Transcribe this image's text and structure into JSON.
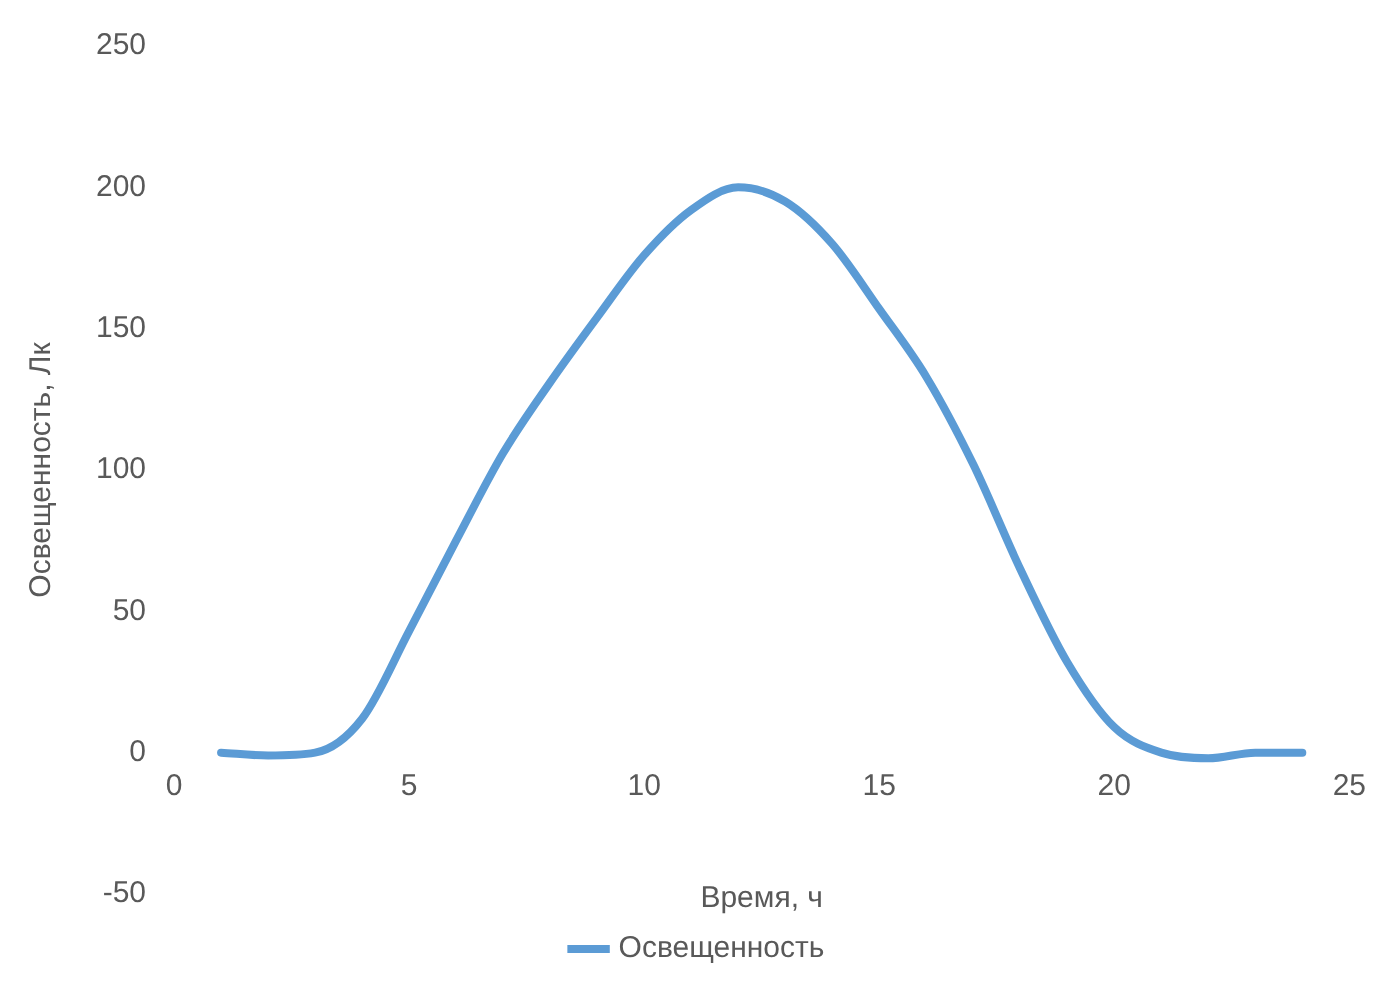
{
  "chart_data": {
    "type": "line",
    "xlabel": "Время, ч",
    "ylabel": "Освещенность, Лк",
    "x": [
      1,
      2,
      3,
      4,
      5,
      6,
      7,
      8,
      9,
      10,
      11,
      12,
      13,
      14,
      15,
      16,
      17,
      18,
      19,
      20,
      21,
      22,
      23,
      24
    ],
    "series": [
      {
        "name": "Освещенность",
        "color": "#5b9bd5",
        "values": [
          0,
          -1,
          0,
          12,
          43,
          75,
          106,
          131,
          154,
          176,
          192,
          200,
          195,
          180,
          157,
          133,
          102,
          65,
          32,
          9,
          0,
          -2,
          0,
          0
        ]
      }
    ],
    "xlim": [
      0,
      25
    ],
    "xticks": [
      0,
      5,
      10,
      15,
      20,
      25
    ],
    "ylim": [
      -50,
      250
    ],
    "yticks": [
      -50,
      0,
      50,
      100,
      150,
      200,
      250
    ],
    "legend": "bottom",
    "marker": "none",
    "line_style": "solid"
  }
}
